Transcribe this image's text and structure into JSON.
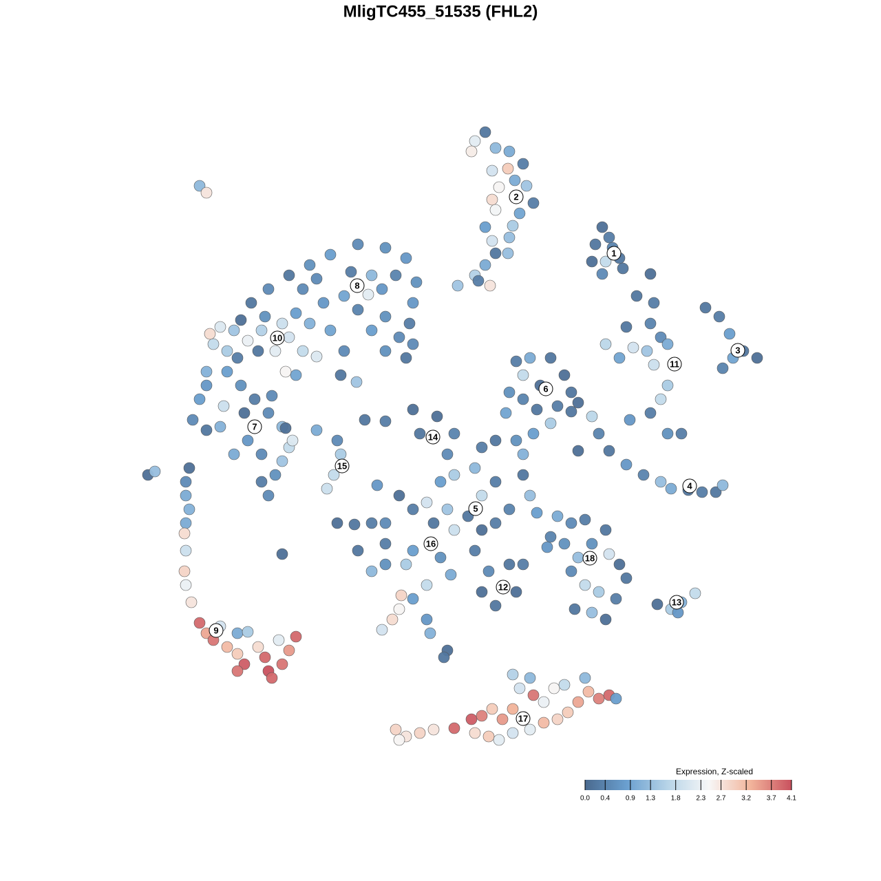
{
  "chart_data": {
    "type": "scatter",
    "title": "MligTC455_51535 (FHL2)",
    "colorbar_title": "Expression, Z-scaled",
    "clim": [
      0,
      4.1
    ],
    "colorscale": [
      "#4a6a8f",
      "#6a9fcf",
      "#b7d4e8",
      "#f7f7f7",
      "#f2b59c",
      "#c9515e"
    ],
    "cticks": [
      {
        "value": 0,
        "label": "0.0"
      },
      0.4,
      0.9,
      1.3,
      1.8,
      2.3,
      2.7,
      3.2,
      3.7,
      4.1
    ],
    "x": [
      6.5,
      5,
      8,
      4.5,
      10,
      12,
      9.8,
      7.5,
      12.5,
      10.8,
      8.5,
      7.5,
      13.5,
      11.5,
      8,
      10.5,
      6.5,
      10,
      7.5,
      8,
      6.5,
      5,
      7.2,
      2.5,
      5.5,
      9.8,
      -35,
      -34,
      23.5,
      22.5,
      24.5,
      24,
      26,
      22,
      23.5,
      26.5,
      30.5,
      25,
      -8,
      -5,
      -12,
      -16,
      -19,
      -22,
      -25,
      -27.5,
      -29,
      -3.5,
      -4,
      -4.5,
      -4,
      -5,
      -8,
      -10,
      -12,
      -14,
      -17,
      -20,
      -8.5,
      -6.5,
      -10,
      -10.5,
      -13,
      -18,
      -21,
      -23,
      -26,
      -28,
      -22,
      -20,
      -18,
      -24,
      -30,
      -32,
      -33,
      -33.5,
      -31,
      -29.5,
      -26.5,
      -14,
      -14.5,
      -12.2,
      -25.5,
      -16,
      -8,
      -6,
      -19,
      -34,
      -34,
      -35,
      -36,
      -34,
      -31,
      -29,
      -27,
      -25,
      -28,
      -26,
      -24,
      -25,
      -22,
      -23,
      -21.5,
      -26,
      -30,
      -28.5,
      -31.5,
      -32,
      -23,
      -22.5,
      -21,
      -22.5,
      -24.5,
      -36.5,
      -37,
      -37,
      -36.5,
      -37,
      -37.2,
      -37,
      -37.2,
      -37,
      -36.2,
      -35,
      -34,
      -33,
      -31,
      -29.5,
      -28.5,
      -29.5,
      -26.5,
      -25.5,
      -25,
      -24.5,
      -23,
      -22,
      -21,
      -23.5,
      -29.5,
      -28,
      -32,
      -42.5,
      -41.5,
      -18,
      -15,
      -14.5,
      -15.5,
      -16.5,
      -11,
      -8,
      -4,
      -3,
      -0.5,
      2,
      6,
      8,
      1,
      5,
      2,
      0,
      8,
      6,
      4,
      6,
      8,
      1,
      -1,
      -4,
      -6,
      -8,
      -2,
      2,
      0,
      -4,
      -5,
      -8,
      -12,
      -10,
      -8,
      5,
      7,
      10,
      12,
      6,
      8,
      11,
      10,
      13,
      12,
      14,
      11,
      12,
      -9.2,
      -15,
      -12.5,
      -2,
      -4,
      -6,
      -7,
      -8.5,
      -2,
      -1.5,
      1,
      0.5,
      -23,
      1.5,
      -5.7,
      -10,
      11,
      13,
      16,
      18,
      19,
      17,
      14,
      12,
      10,
      9.5,
      14.5,
      12,
      16,
      13.5,
      20,
      19,
      28.5,
      31,
      30.5,
      32,
      33,
      31,
      33,
      32,
      30.5,
      33,
      35,
      27.5,
      24,
      26,
      28,
      27,
      30,
      38.5,
      40.5,
      42,
      44,
      46,
      41,
      42.5,
      22,
      23,
      24.5,
      27,
      29.5,
      32,
      33.5,
      36,
      38,
      40,
      41,
      20,
      17,
      19,
      21,
      24,
      22,
      20,
      19,
      21,
      23,
      26,
      27,
      25.5,
      24,
      22,
      19.5,
      18,
      15.5,
      16,
      24.5,
      31.5,
      33.5,
      35,
      37,
      34.5,
      -6.5,
      -5,
      -3,
      -1,
      2,
      4.5,
      5,
      7,
      9,
      8.5,
      10.5,
      10.5,
      11.5,
      10.5,
      13,
      13.5,
      15,
      15,
      17,
      18.5,
      20,
      16.5,
      18,
      21,
      21.5,
      23,
      24.5,
      25.5,
      12,
      13,
      -6,
      7.5,
      6
    ],
    "y": [
      44.8,
      43.5,
      42.5,
      42,
      42,
      40.2,
      39.5,
      39.2,
      37,
      37.8,
      36.8,
      35,
      34.5,
      33,
      33.5,
      31.2,
      31,
      29.5,
      29,
      27.2,
      25.5,
      24,
      22.5,
      22.5,
      23.2,
      27.2,
      37,
      36,
      31,
      28.5,
      29.5,
      26,
      26.5,
      26,
      24.2,
      25,
      24.2,
      28,
      28,
      26.5,
      28.5,
      27,
      25.5,
      24,
      22,
      20,
      17.5,
      23,
      20,
      17,
      14,
      12,
      13,
      16,
      19,
      21,
      20,
      22,
      22,
      24,
      24,
      21.2,
      24.5,
      23.5,
      18.5,
      17,
      16,
      14.5,
      15,
      13,
      12.2,
      13,
      16,
      16.5,
      14,
      15.5,
      13,
      12,
      13,
      13,
      9.5,
      8.5,
      18,
      16,
      18,
      15,
      17,
      10,
      8,
      6,
      3,
      1.5,
      10,
      8,
      6,
      4,
      0,
      -2,
      -5,
      -8,
      -1,
      -3,
      0,
      -6,
      -2,
      4,
      5,
      2,
      2,
      10,
      9.5,
      1.8,
      6.5,
      -4,
      -6,
      -8,
      -10,
      -12,
      -13.5,
      -16,
      -19,
      -21,
      -23.5,
      -26.5,
      -28,
      -29,
      -30,
      -31,
      -32.5,
      -33.5,
      -30,
      -31.5,
      -33.5,
      -34.5,
      -32.5,
      -30.5,
      -28.5,
      -29,
      -28,
      -27.8,
      -27,
      -5,
      -4.5,
      1.5,
      0,
      -2,
      -5,
      -7,
      3,
      2.8,
      4.5,
      1,
      3.5,
      1,
      -1,
      0,
      -2,
      -4,
      -5,
      -6,
      -6,
      -8,
      -11,
      -13,
      -12,
      -10,
      -12,
      -10,
      -8,
      -12,
      -9,
      -13,
      -17,
      -16,
      -18,
      -18,
      -16,
      -19,
      -15,
      -16,
      -19,
      -18,
      -18,
      -22,
      -24,
      -22,
      -10,
      -8,
      -5,
      -10.5,
      0,
      -2,
      -6.5,
      -12,
      -12.2,
      -21,
      -23,
      -24.5,
      -26,
      -27.5,
      -26,
      -28,
      -30.5,
      -31.5,
      -16.5,
      -19.5,
      -22.5,
      -12,
      11.5,
      12,
      12,
      9.5,
      7,
      5,
      4.5,
      6,
      7,
      4,
      8,
      9.5,
      2.5,
      1,
      5.5,
      4.2,
      21,
      20,
      17,
      15,
      14,
      11,
      8,
      6,
      4,
      1,
      1,
      3,
      14,
      12,
      13.5,
      16.5,
      13,
      19.3,
      18,
      15.5,
      13,
      12,
      10.5,
      12,
      3.5,
      1,
      -1.5,
      -3.5,
      -5,
      -6,
      -7,
      -7.2,
      -7.5,
      -7.5,
      -6.5,
      -1.5,
      -11,
      -12,
      -11.5,
      -13,
      -15,
      -17,
      -19,
      -21,
      -22,
      -18,
      -20,
      -23,
      -26,
      -25,
      -24.5,
      -15,
      -15.5,
      -14,
      -16.5,
      -23.8,
      -24.5,
      -23.5,
      -22.2,
      -25,
      -42,
      -43,
      -42.5,
      -42,
      -41.8,
      -40.5,
      -42.5,
      -43,
      -40.5,
      -43.5,
      -42.5,
      -39,
      -36,
      -34,
      -34.5,
      -37,
      -38,
      -41,
      -40.5,
      -39.5,
      -38,
      -36,
      -35.5,
      -34.5,
      -36.5,
      -37.5,
      -37,
      -37.5,
      -40.5,
      -42,
      -43.5,
      -39,
      -40
    ],
    "values": [
      0.2,
      2.2,
      1.2,
      2.6,
      1.0,
      0.3,
      3.0,
      2.0,
      1.4,
      1.0,
      2.5,
      2.8,
      0.3,
      0.9,
      2.4,
      1.5,
      0.8,
      1.3,
      2.0,
      0.2,
      1.0,
      1.6,
      2.7,
      1.4,
      0.3,
      1.3,
      1.2,
      2.7,
      0.1,
      0.2,
      0.3,
      1.8,
      0.2,
      0.1,
      0.5,
      0.2,
      0.1,
      0.4,
      0.6,
      0.7,
      0.5,
      0.8,
      0.6,
      0.2,
      0.5,
      0.2,
      0.1,
      0.6,
      0.7,
      0.3,
      0.5,
      0.2,
      0.6,
      0.8,
      0.4,
      0.9,
      0.7,
      0.5,
      0.7,
      0.4,
      1.2,
      2.2,
      0.3,
      0.5,
      0.8,
      1.9,
      1.6,
      2.3,
      2.0,
      1.8,
      2.1,
      2.2,
      1.4,
      2.1,
      1.8,
      2.8,
      1.5,
      0.3,
      0.2,
      0.5,
      0.2,
      1.4,
      0.6,
      0.9,
      0.6,
      0.5,
      1.1,
      1.1,
      0.7,
      0.8,
      0.5,
      0.2,
      0.8,
      0.6,
      0.3,
      0.5,
      0.7,
      0.5,
      0.6,
      0.5,
      1.8,
      1.4,
      2.1,
      0.3,
      1.0,
      0.1,
      1.9,
      1.1,
      1.2,
      2.5,
      0.9,
      0.1,
      0.5,
      0.1,
      0.5,
      1.0,
      1.1,
      1.0,
      2.8,
      1.9,
      2.9,
      2.3,
      2.7,
      3.9,
      3.4,
      3.8,
      3.2,
      3.0,
      4.0,
      3.8,
      2.8,
      3.9,
      4.1,
      3.9,
      3.8,
      3.5,
      3.9,
      2.2,
      1.0,
      1.5,
      2.0,
      0.1,
      1.3,
      1.0,
      0.5,
      1.5,
      1.8,
      1.9,
      0.2,
      0.3,
      0.1,
      0.2,
      0.1,
      0.4,
      0.3,
      0.2,
      0.5,
      1.2,
      1.5,
      0.8,
      0.3,
      1.8,
      0.2,
      0.1,
      0.3,
      1.4,
      0.2,
      0.3,
      0.1,
      0.5,
      2.0,
      1.9,
      0.6,
      0.8,
      1.5,
      0.6,
      0.2,
      1.2,
      0.3,
      0.3,
      0.5,
      0.2,
      0.3,
      0.1,
      0.2,
      0.1,
      0.4,
      1.3,
      0.2,
      0.8,
      0.6,
      1.1,
      0.7,
      0.1,
      0.2,
      1.8,
      0.8,
      2.5,
      2.8,
      2.0,
      0.7,
      1.1,
      0.1,
      0.2,
      0.1,
      1.0,
      2.9,
      0.3,
      0.3,
      1.0,
      0.2,
      0.1,
      0.2,
      0.3,
      0.2,
      0.4,
      0.6,
      0.9,
      0.1,
      1.8,
      1.5,
      0.8,
      0.1,
      0.2,
      0.2,
      0.3,
      0.4,
      0.5,
      1.0,
      1.9,
      1.5,
      1.8,
      0.3,
      0.6,
      0.3,
      0.7,
      1.7,
      0.9,
      2.0,
      0.2,
      1.4,
      0.2,
      0.3,
      0.8,
      0.2,
      0.1,
      0.4,
      0.9,
      1.7,
      0.4,
      0.2,
      0.7,
      0.4,
      1.3,
      1.0,
      0.2,
      0.3,
      0.2,
      1.2,
      0.1,
      1.0,
      0.5,
      0.3,
      0.2,
      0.6,
      1.3,
      0.5,
      1.8,
      1.5,
      0.1,
      0.2,
      0.3,
      0.1,
      1.3,
      0.2,
      0.6,
      0.7,
      0.4,
      2.0,
      0.1,
      1.5,
      1.1,
      1.8,
      0.7,
      2.9,
      2.7,
      2.9,
      2.7,
      3.9,
      4.0,
      2.8,
      3.0,
      3.5,
      2.2,
      2.0,
      3.3,
      2.0,
      1.6,
      1.2,
      3.8,
      2.3,
      3.2,
      2.9,
      3.0,
      3.4,
      2.5,
      1.8,
      1.2,
      3.2,
      3.7,
      3.9,
      0.8,
      2.4,
      2.2,
      2.5,
      3.0,
      3.7
    ],
    "cluster_labels": {
      "labels": [
        "1",
        "2",
        "3",
        "4",
        "5",
        "6",
        "7",
        "8",
        "9",
        "10",
        "11",
        "12",
        "13",
        "14",
        "15",
        "16",
        "17",
        "18"
      ],
      "x": [
        25.2,
        11,
        43.2,
        36.2,
        5.1,
        15.3,
        -27,
        -12.1,
        -32.6,
        -23.7,
        34,
        9.1,
        34.3,
        -1.1,
        -14.3,
        -1.4,
        12,
        21.7
      ],
      "y": [
        27.2,
        35.4,
        13.1,
        -6.6,
        -9.9,
        7.5,
        2,
        22.5,
        -27.6,
        14.9,
        11.1,
        -21.3,
        -23.5,
        0.5,
        -3.7,
        -15,
        -40.4,
        -17.1
      ]
    }
  }
}
